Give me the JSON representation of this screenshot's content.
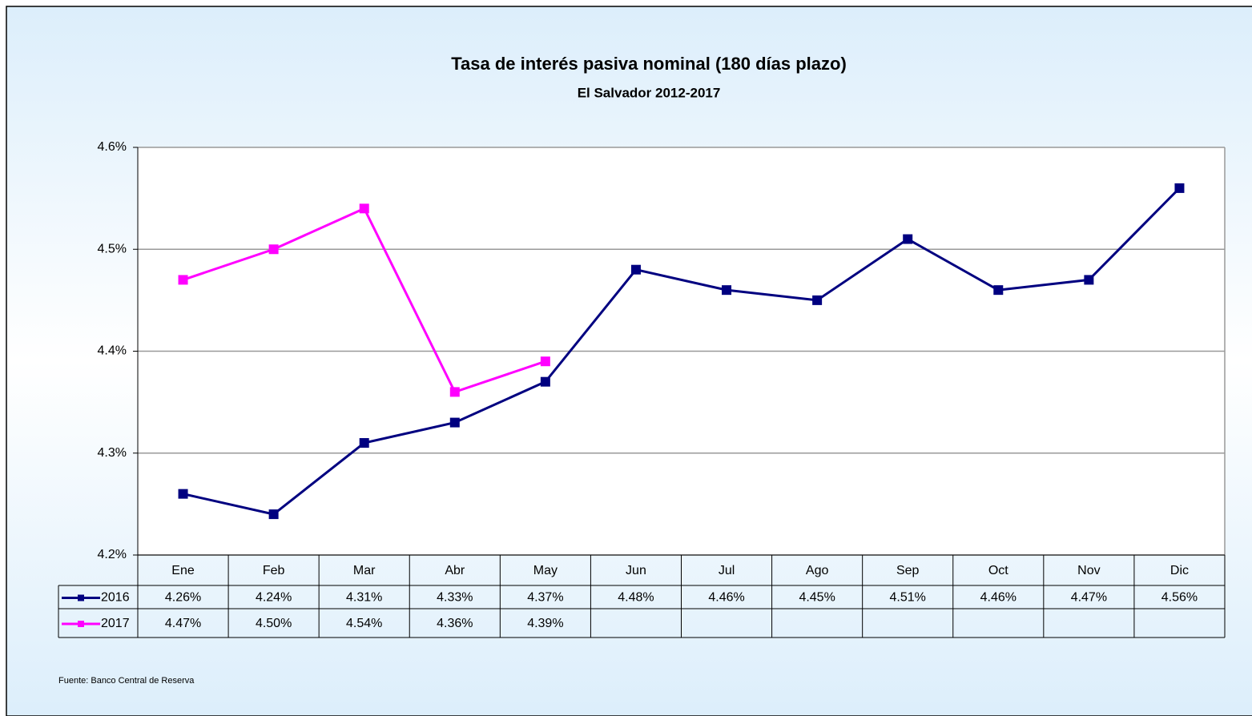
{
  "chart_data": {
    "type": "line",
    "title": "Tasa de interés pasiva nominal (180 días plazo)",
    "subtitle": "El Salvador 2012-2017",
    "categories": [
      "Ene",
      "Feb",
      "Mar",
      "Abr",
      "May",
      "Jun",
      "Jul",
      "Ago",
      "Sep",
      "Oct",
      "Nov",
      "Dic"
    ],
    "series": [
      {
        "name": "2016",
        "color": "#000080",
        "values": [
          4.26,
          4.24,
          4.31,
          4.33,
          4.37,
          4.48,
          4.46,
          4.45,
          4.51,
          4.46,
          4.47,
          4.56
        ],
        "value_labels": [
          "4.26%",
          "4.24%",
          "4.31%",
          "4.33%",
          "4.37%",
          "4.48%",
          "4.46%",
          "4.45%",
          "4.51%",
          "4.46%",
          "4.47%",
          "4.56%"
        ]
      },
      {
        "name": "2017",
        "color": "#ff00ff",
        "values": [
          4.47,
          4.5,
          4.54,
          4.36,
          4.39,
          null,
          null,
          null,
          null,
          null,
          null,
          null
        ],
        "value_labels": [
          "4.47%",
          "4.50%",
          "4.54%",
          "4.36%",
          "4.39%",
          null,
          null,
          null,
          null,
          null,
          null,
          null
        ]
      }
    ],
    "ylim": [
      4.2,
      4.6
    ],
    "yticks": [
      {
        "value": 4.2,
        "label": "4.2%"
      },
      {
        "value": 4.3,
        "label": "4.3%"
      },
      {
        "value": 4.4,
        "label": "4.4%"
      },
      {
        "value": 4.5,
        "label": "4.5%"
      },
      {
        "value": 4.6,
        "label": "4.6%"
      }
    ],
    "grid": true,
    "source": "Fuente: Banco Central de Reserva"
  }
}
